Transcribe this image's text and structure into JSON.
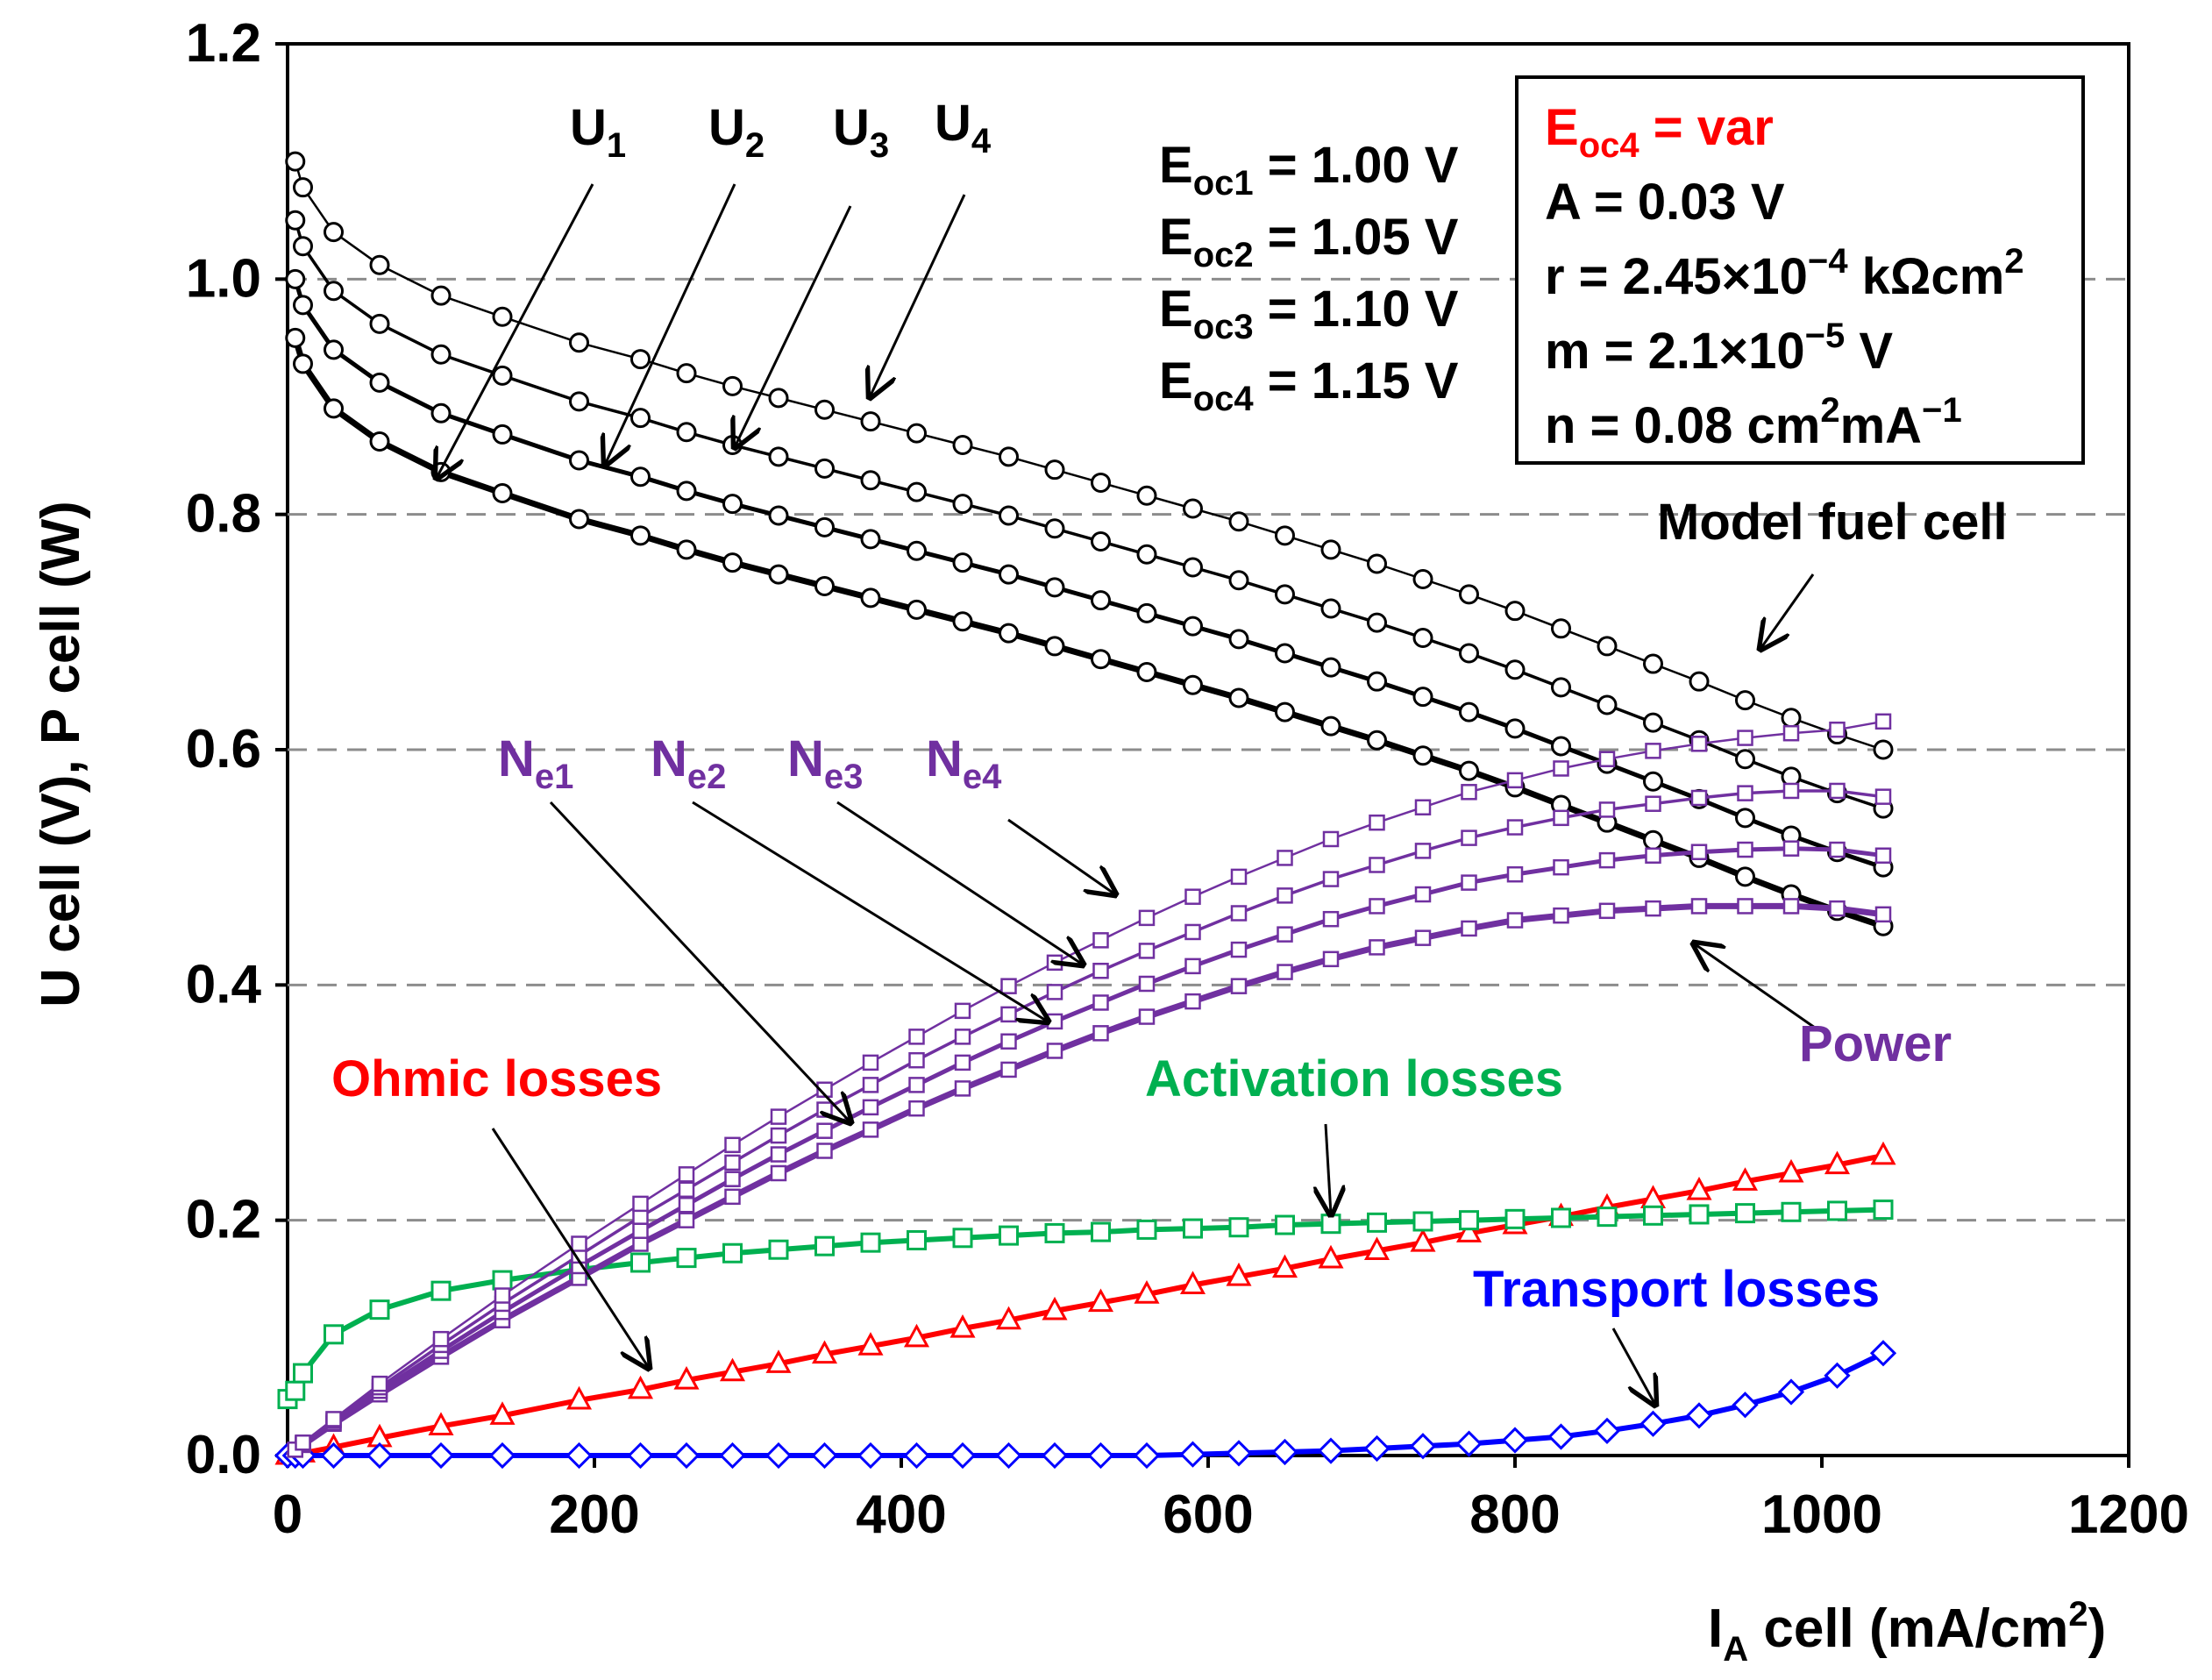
{
  "chart_data": {
    "type": "line",
    "xlabel": {
      "main": "I",
      "sub": "A",
      "rest": " cell (mA/cm",
      "sup": "2",
      "end": ")"
    },
    "ylabel": "U cell (V), P cell (W)",
    "xlim": [
      0,
      1200
    ],
    "ylim": [
      0,
      1.2
    ],
    "xticks": [
      "0",
      "200",
      "400",
      "600",
      "800",
      "1000",
      "1200"
    ],
    "yticks": [
      "0.0",
      "0.2",
      "0.4",
      "0.6",
      "0.8",
      "1.0",
      "1.2"
    ],
    "grid": "horizontal dashed",
    "x": [
      0,
      5,
      10,
      30,
      60,
      100,
      140,
      190,
      230,
      260,
      290,
      320,
      350,
      380,
      410,
      440,
      470,
      500,
      530,
      560,
      590,
      620,
      650,
      680,
      710,
      740,
      770,
      800,
      830,
      860,
      890,
      920,
      950,
      980,
      1010,
      1040
    ],
    "series": [
      {
        "name": "U1",
        "kind": "voltage",
        "color": "#000000",
        "width": 7,
        "values": [
          0.95,
          0.95,
          0.928,
          0.89,
          0.862,
          0.836,
          0.818,
          0.796,
          0.782,
          0.77,
          0.759,
          0.749,
          0.739,
          0.729,
          0.719,
          0.709,
          0.699,
          0.688,
          0.677,
          0.666,
          0.655,
          0.644,
          0.632,
          0.62,
          0.608,
          0.595,
          0.582,
          0.568,
          0.553,
          0.538,
          0.523,
          0.508,
          0.492,
          0.477,
          0.463,
          0.45
        ]
      },
      {
        "name": "U2",
        "kind": "voltage",
        "color": "#000000",
        "width": 5,
        "values": [
          1.0,
          1.0,
          0.978,
          0.94,
          0.912,
          0.886,
          0.868,
          0.846,
          0.832,
          0.82,
          0.809,
          0.799,
          0.789,
          0.779,
          0.769,
          0.759,
          0.749,
          0.738,
          0.727,
          0.716,
          0.705,
          0.694,
          0.682,
          0.67,
          0.658,
          0.645,
          0.632,
          0.618,
          0.603,
          0.588,
          0.573,
          0.558,
          0.542,
          0.527,
          0.513,
          0.5
        ]
      },
      {
        "name": "U3",
        "kind": "voltage",
        "color": "#000000",
        "width": 3.5,
        "values": [
          1.05,
          1.05,
          1.028,
          0.99,
          0.962,
          0.936,
          0.918,
          0.896,
          0.882,
          0.87,
          0.859,
          0.849,
          0.839,
          0.829,
          0.819,
          0.809,
          0.799,
          0.788,
          0.777,
          0.766,
          0.755,
          0.744,
          0.732,
          0.72,
          0.708,
          0.695,
          0.682,
          0.668,
          0.653,
          0.638,
          0.623,
          0.608,
          0.592,
          0.577,
          0.563,
          0.55
        ]
      },
      {
        "name": "U4",
        "kind": "voltage",
        "color": "#000000",
        "width": 2.5,
        "values": [
          1.1,
          1.1,
          1.078,
          1.04,
          1.012,
          0.986,
          0.968,
          0.946,
          0.932,
          0.92,
          0.909,
          0.899,
          0.889,
          0.879,
          0.869,
          0.859,
          0.849,
          0.838,
          0.827,
          0.816,
          0.805,
          0.794,
          0.782,
          0.77,
          0.758,
          0.745,
          0.732,
          0.718,
          0.703,
          0.688,
          0.673,
          0.658,
          0.642,
          0.627,
          0.613,
          0.6
        ]
      },
      {
        "name": "Ne1",
        "kind": "power",
        "color": "#7030a0",
        "width": 7,
        "values": [
          0.0,
          0.005,
          0.009,
          0.027,
          0.052,
          0.084,
          0.115,
          0.151,
          0.18,
          0.2,
          0.22,
          0.24,
          0.259,
          0.277,
          0.295,
          0.312,
          0.328,
          0.344,
          0.359,
          0.373,
          0.386,
          0.399,
          0.411,
          0.422,
          0.432,
          0.44,
          0.448,
          0.455,
          0.459,
          0.463,
          0.465,
          0.467,
          0.467,
          0.467,
          0.465,
          0.46
        ]
      },
      {
        "name": "Ne2",
        "kind": "power",
        "color": "#7030a0",
        "width": 5,
        "values": [
          0.0,
          0.005,
          0.01,
          0.028,
          0.055,
          0.089,
          0.122,
          0.161,
          0.191,
          0.213,
          0.235,
          0.256,
          0.276,
          0.296,
          0.315,
          0.334,
          0.352,
          0.369,
          0.385,
          0.401,
          0.416,
          0.43,
          0.443,
          0.456,
          0.467,
          0.477,
          0.487,
          0.494,
          0.5,
          0.506,
          0.51,
          0.513,
          0.515,
          0.516,
          0.515,
          0.51
        ]
      },
      {
        "name": "Ne3",
        "kind": "power",
        "color": "#7030a0",
        "width": 3.5,
        "values": [
          0.0,
          0.005,
          0.01,
          0.03,
          0.058,
          0.094,
          0.129,
          0.17,
          0.203,
          0.226,
          0.249,
          0.272,
          0.294,
          0.315,
          0.336,
          0.356,
          0.375,
          0.394,
          0.412,
          0.429,
          0.445,
          0.461,
          0.476,
          0.49,
          0.502,
          0.514,
          0.525,
          0.534,
          0.542,
          0.549,
          0.554,
          0.559,
          0.563,
          0.565,
          0.565,
          0.56
        ]
      },
      {
        "name": "Ne4",
        "kind": "power",
        "color": "#7030a0",
        "width": 2.5,
        "values": [
          0.0,
          0.005,
          0.011,
          0.031,
          0.061,
          0.099,
          0.136,
          0.18,
          0.214,
          0.239,
          0.264,
          0.288,
          0.311,
          0.334,
          0.356,
          0.378,
          0.399,
          0.419,
          0.438,
          0.457,
          0.475,
          0.492,
          0.508,
          0.524,
          0.538,
          0.551,
          0.564,
          0.574,
          0.584,
          0.592,
          0.599,
          0.605,
          0.61,
          0.614,
          0.617,
          0.624
        ]
      },
      {
        "name": "Ohmic losses",
        "kind": "loss",
        "color": "#ff0000",
        "marker": "triangle",
        "width": 6,
        "values": [
          0.0,
          0.001,
          0.002,
          0.007,
          0.015,
          0.025,
          0.034,
          0.047,
          0.056,
          0.064,
          0.071,
          0.078,
          0.086,
          0.093,
          0.1,
          0.108,
          0.115,
          0.123,
          0.13,
          0.137,
          0.145,
          0.152,
          0.159,
          0.167,
          0.174,
          0.181,
          0.189,
          0.196,
          0.203,
          0.211,
          0.218,
          0.225,
          0.233,
          0.24,
          0.247,
          0.255
        ]
      },
      {
        "name": "Activation losses",
        "kind": "loss",
        "color": "#00b050",
        "marker": "square",
        "width": 6,
        "values": [
          0.048,
          0.055,
          0.07,
          0.103,
          0.124,
          0.14,
          0.149,
          0.158,
          0.164,
          0.168,
          0.172,
          0.175,
          0.178,
          0.181,
          0.183,
          0.185,
          0.187,
          0.189,
          0.19,
          0.192,
          0.193,
          0.194,
          0.196,
          0.197,
          0.198,
          0.199,
          0.2,
          0.201,
          0.202,
          0.203,
          0.204,
          0.205,
          0.206,
          0.207,
          0.208,
          0.209
        ]
      },
      {
        "name": "Transport losses",
        "kind": "loss",
        "color": "#0000ff",
        "marker": "diamond",
        "width": 6,
        "values": [
          0.0,
          0.0,
          0.0,
          0.0,
          0.0,
          0.0,
          0.0,
          0.0,
          0.0,
          0.0,
          0.0,
          0.0,
          0.0,
          0.0,
          0.0,
          0.0,
          0.0,
          0.0,
          0.0,
          0.0,
          0.001,
          0.002,
          0.003,
          0.004,
          0.006,
          0.008,
          0.01,
          0.013,
          0.016,
          0.021,
          0.027,
          0.034,
          0.043,
          0.054,
          0.068,
          0.087
        ]
      }
    ],
    "annotations": {
      "u_labels": [
        {
          "main": "U",
          "sub": "1"
        },
        {
          "main": "U",
          "sub": "2"
        },
        {
          "main": "U",
          "sub": "3"
        },
        {
          "main": "U",
          "sub": "4"
        }
      ],
      "ne_labels": [
        {
          "main": "N",
          "sub": "e1"
        },
        {
          "main": "N",
          "sub": "e2"
        },
        {
          "main": "N",
          "sub": "e3"
        },
        {
          "main": "N",
          "sub": "e4"
        }
      ],
      "eoc_lines": [
        {
          "main": "E",
          "sub": "oc1",
          "value": " = 1.00 V"
        },
        {
          "main": "E",
          "sub": "oc2",
          "value": " = 1.05 V"
        },
        {
          "main": "E",
          "sub": "oc3",
          "value": " = 1.10 V"
        },
        {
          "main": "E",
          "sub": "oc4",
          "value": " = 1.15 V"
        }
      ],
      "params_box": {
        "line1": {
          "main": "E",
          "sub": "oc4",
          "value": " = var"
        },
        "line2": "A = 0.03 V",
        "line3": {
          "pre": "r = 2.45×10",
          "sup": "−4",
          "post": "  kΩcm",
          "sup2": "2"
        },
        "line4": {
          "pre": "m = 2.1×10",
          "sup": "−5",
          "post": "  V"
        },
        "line5": {
          "pre": "n = 0.08 cm",
          "sup": "2",
          "mid": "mA",
          "sup2": "−1"
        }
      },
      "model_fuel_cell": "Model fuel cell",
      "power": "Power",
      "ohmic": "Ohmic losses",
      "activation": "Activation losses",
      "transport": "Transport losses"
    }
  }
}
